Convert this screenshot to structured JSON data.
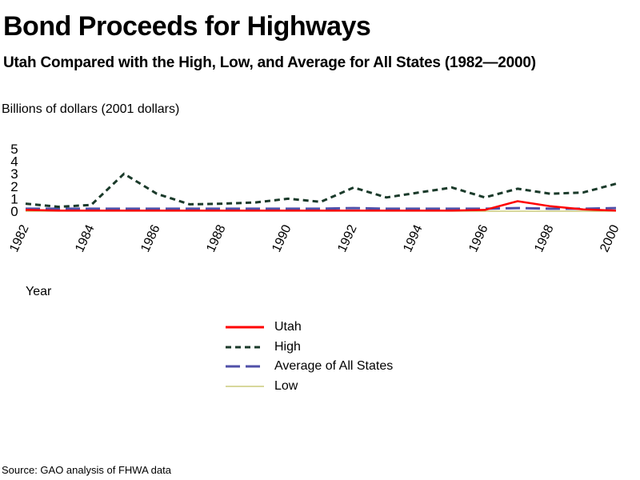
{
  "title": "Bond Proceeds for Highways",
  "subtitle": "Utah Compared with the High, Low, and Average for All States (1982—2000)",
  "ylabel": "Billions of dollars (2001 dollars)",
  "xlabel": "Year",
  "source": "Source: GAO analysis of FHWA data",
  "chart_data": {
    "type": "line",
    "title": "Bond Proceeds for Highways",
    "subtitle": "Utah Compared with the High, Low, and Average for All States (1982—2000)",
    "xlabel": "Year",
    "ylabel": "Billions of dollars (2001 dollars)",
    "x": [
      1982,
      1983,
      1984,
      1985,
      1986,
      1987,
      1988,
      1989,
      1990,
      1991,
      1992,
      1993,
      1994,
      1995,
      1996,
      1997,
      1998,
      1999,
      2000
    ],
    "xticks": [
      "1982",
      "1984",
      "1986",
      "1988",
      "1990",
      "1992",
      "1994",
      "1996",
      "1998",
      "2000"
    ],
    "yticks": [
      "0",
      "1",
      "2",
      "3",
      "4",
      "5"
    ],
    "ylim": [
      0,
      5
    ],
    "grid": false,
    "legend_position": "bottom",
    "series": [
      {
        "name": "Utah",
        "color": "#ff0000",
        "style": "solid",
        "values": [
          0.1,
          0.05,
          0.05,
          0.05,
          0.05,
          0.05,
          0.05,
          0.05,
          0.05,
          0.05,
          0.05,
          0.05,
          0.05,
          0.05,
          0.1,
          0.8,
          0.4,
          0.15,
          0.05
        ]
      },
      {
        "name": "High",
        "color": "#1a3a2a",
        "style": "dotted",
        "values": [
          0.6,
          0.35,
          0.5,
          3.0,
          1.4,
          0.55,
          0.6,
          0.7,
          1.0,
          0.75,
          1.9,
          1.1,
          1.5,
          1.9,
          1.1,
          1.8,
          1.4,
          1.5,
          2.2
        ]
      },
      {
        "name": "Average of All States",
        "color": "#5050a8",
        "style": "dashed",
        "values": [
          0.2,
          0.2,
          0.2,
          0.2,
          0.2,
          0.2,
          0.2,
          0.2,
          0.2,
          0.2,
          0.25,
          0.2,
          0.2,
          0.2,
          0.2,
          0.25,
          0.2,
          0.2,
          0.25
        ]
      },
      {
        "name": "Low",
        "color": "#c0c060",
        "style": "solid",
        "values": [
          0,
          0,
          0,
          0,
          0,
          0,
          0,
          0,
          0,
          0,
          0,
          0,
          0,
          0,
          0,
          0,
          0,
          0,
          0
        ]
      }
    ]
  }
}
